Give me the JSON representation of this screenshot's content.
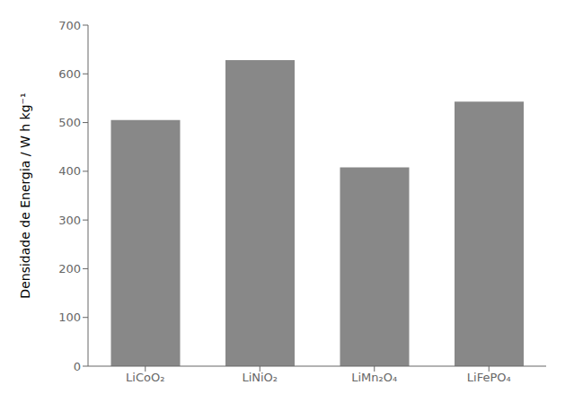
{
  "chart_data": {
    "type": "bar",
    "categories": [
      "LiCoO₂",
      "LiNiO₂",
      "LiMn₂O₄",
      "LiFePO₄"
    ],
    "values": [
      505,
      628,
      408,
      543
    ],
    "color": "#888888",
    "ylabel": "Densidade de Energia / W h  kg⁻¹",
    "ylim": [
      0,
      700
    ],
    "yticks": [
      0,
      100,
      200,
      300,
      400,
      500,
      600,
      700
    ],
    "grid": false
  }
}
